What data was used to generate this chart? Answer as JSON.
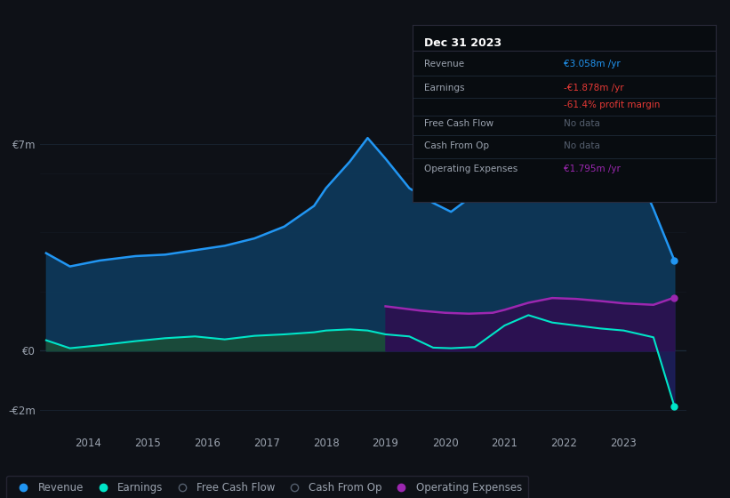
{
  "bg_color": "#0e1117",
  "plot_bg_color": "#0e1117",
  "grid_color": "#1e2d3d",
  "text_color": "#9ba3af",
  "ylim": [
    -2.8,
    8.5
  ],
  "xtick_years": [
    2014,
    2015,
    2016,
    2017,
    2018,
    2019,
    2020,
    2021,
    2022,
    2023
  ],
  "revenue_x": [
    2013.3,
    2013.7,
    2014.2,
    2014.8,
    2015.3,
    2015.8,
    2016.3,
    2016.8,
    2017.3,
    2017.8,
    2018.0,
    2018.4,
    2018.7,
    2019.0,
    2019.4,
    2019.8,
    2020.1,
    2020.5,
    2021.0,
    2021.4,
    2021.8,
    2022.2,
    2022.6,
    2023.0,
    2023.5,
    2023.85
  ],
  "revenue_y": [
    3.3,
    2.85,
    3.05,
    3.2,
    3.25,
    3.4,
    3.55,
    3.8,
    4.2,
    4.9,
    5.5,
    6.4,
    7.2,
    6.5,
    5.5,
    5.0,
    4.7,
    5.3,
    5.9,
    6.1,
    6.3,
    6.5,
    6.9,
    7.1,
    4.8,
    3.06
  ],
  "earnings_x": [
    2013.3,
    2013.7,
    2014.2,
    2014.8,
    2015.3,
    2015.8,
    2016.3,
    2016.8,
    2017.3,
    2017.8,
    2018.0,
    2018.4,
    2018.7,
    2019.0,
    2019.4,
    2019.8,
    2020.1,
    2020.5,
    2021.0,
    2021.4,
    2021.8,
    2022.2,
    2022.6,
    2023.0,
    2023.5,
    2023.85
  ],
  "earnings_y": [
    0.35,
    0.08,
    0.18,
    0.32,
    0.42,
    0.48,
    0.38,
    0.5,
    0.55,
    0.62,
    0.68,
    0.72,
    0.68,
    0.55,
    0.48,
    0.1,
    0.08,
    0.12,
    0.85,
    1.2,
    0.95,
    0.85,
    0.75,
    0.68,
    0.45,
    -1.878
  ],
  "opex_x": [
    2019.0,
    2019.2,
    2019.6,
    2020.0,
    2020.4,
    2020.8,
    2021.0,
    2021.4,
    2021.8,
    2022.2,
    2022.6,
    2023.0,
    2023.5,
    2023.85
  ],
  "opex_y": [
    1.5,
    1.45,
    1.35,
    1.28,
    1.25,
    1.28,
    1.38,
    1.62,
    1.78,
    1.75,
    1.68,
    1.6,
    1.55,
    1.795
  ],
  "revenue_color": "#2196f3",
  "revenue_fill": "#0d3a5c",
  "earnings_fill_pre2019": "#1a4a3a",
  "earnings_fill_post2019": "#1e2060",
  "earnings_color": "#00e5c8",
  "opex_color": "#9c27b0",
  "opex_fill": "#2d1050",
  "tooltip_bg": "#080c10",
  "legend_bg": "#0e1117",
  "legend_border": "#2a2a3a",
  "ylabel_7m": "€7m",
  "ylabel_0": "€0",
  "ylabel_n2m": "-€2m"
}
